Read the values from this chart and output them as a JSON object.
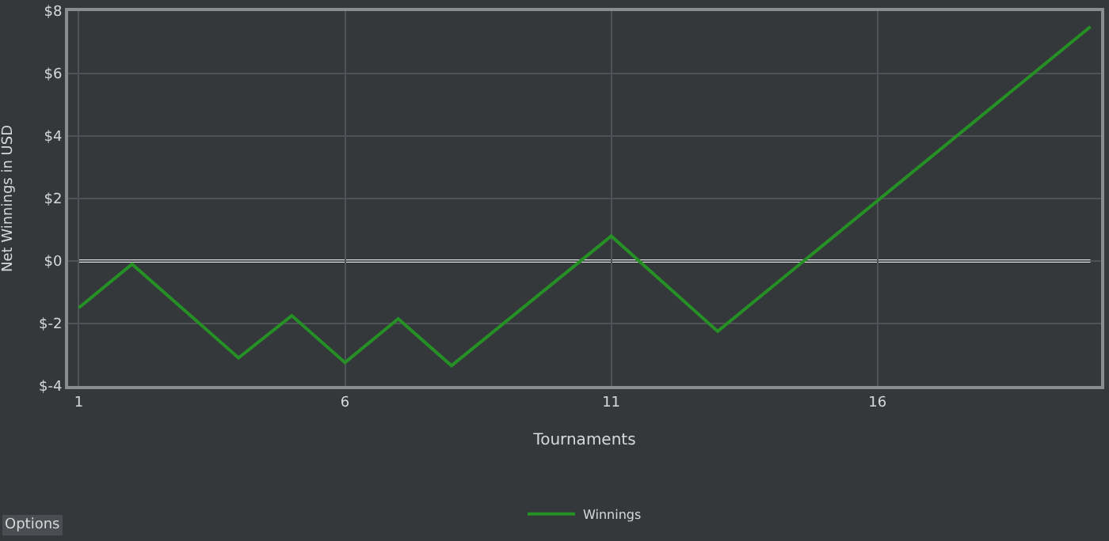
{
  "chart_data": {
    "type": "line",
    "xlabel": "Tournaments",
    "ylabel": "Net Winnings in USD",
    "xlim": [
      0.8,
      20.2
    ],
    "xticks": [
      1,
      6,
      11,
      16
    ],
    "ylim": [
      -4,
      8
    ],
    "yticks": [
      {
        "value": -4,
        "label": "$-4"
      },
      {
        "value": -2,
        "label": "$-2"
      },
      {
        "value": 0,
        "label": "$0"
      },
      {
        "value": 2,
        "label": "$2"
      },
      {
        "value": 4,
        "label": "$4"
      },
      {
        "value": 6,
        "label": "$6"
      },
      {
        "value": 8,
        "label": "$8"
      }
    ],
    "series": [
      {
        "name": "Winnings",
        "color": "#259125",
        "x": [
          1,
          2,
          4,
          5,
          6,
          7,
          8,
          11,
          13,
          20
        ],
        "values": [
          -1.5,
          -0.1,
          -3.1,
          -1.75,
          -3.25,
          -1.85,
          -3.35,
          0.8,
          -2.25,
          7.5
        ]
      }
    ],
    "ref_lines": [
      {
        "axis": "y",
        "value": 0,
        "color": "#e8e8e8"
      }
    ],
    "grid": true,
    "legend": "bottom",
    "marker": "none",
    "line_style": "solid",
    "annotations": [
      "Options"
    ]
  }
}
